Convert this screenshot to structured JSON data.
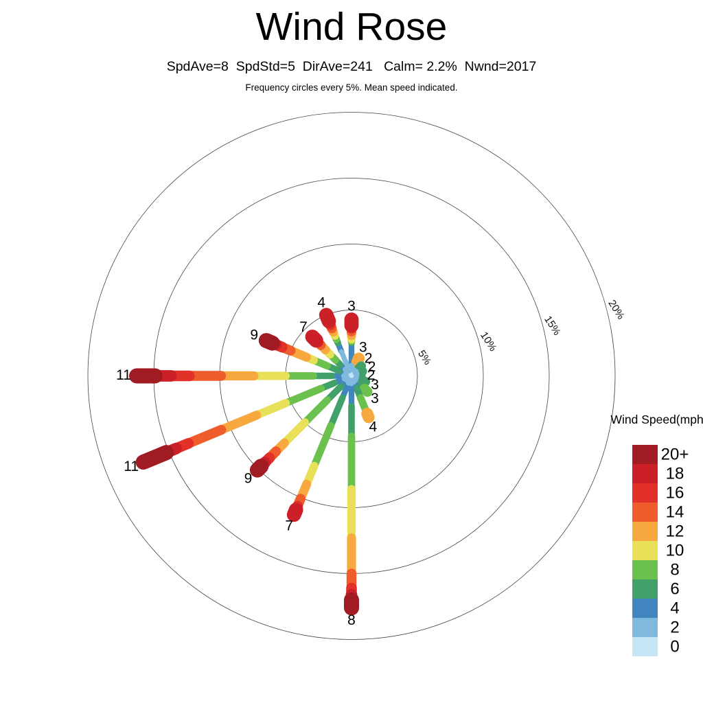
{
  "header": {
    "title": "Wind Rose",
    "subtitle": "SpdAve=8  SpdStd=5  DirAve=241   Calm= 2.2%  Nwnd=2017",
    "caption": "Frequency circles every 5%. Mean speed indicated."
  },
  "chart_data": {
    "type": "windrose",
    "title": "Wind Rose",
    "stats": {
      "SpdAve": 8,
      "SpdStd": 5,
      "DirAve": 241,
      "Calm_pct": 2.2,
      "Nwnd": 2017
    },
    "frequency_ring_step_pct": 5,
    "frequency_rings_pct": [
      5,
      10,
      15,
      20
    ],
    "ring_labels": [
      "5%",
      "10%",
      "15%",
      "20%"
    ],
    "speed_scale": [
      {
        "speed": "0",
        "color": "#c6e6f8"
      },
      {
        "speed": "2",
        "color": "#7fbade"
      },
      {
        "speed": "4",
        "color": "#4286c0"
      },
      {
        "speed": "6",
        "color": "#42a16b"
      },
      {
        "speed": "8",
        "color": "#6cc04d"
      },
      {
        "speed": "10",
        "color": "#e7e058"
      },
      {
        "speed": "12",
        "color": "#f7a93f"
      },
      {
        "speed": "14",
        "color": "#ee5d2b"
      },
      {
        "speed": "16",
        "color": "#e13128"
      },
      {
        "speed": "18",
        "color": "#cb2027"
      },
      {
        "speed": "20+",
        "color": "#a01c22"
      }
    ],
    "legend": {
      "title": "Wind Speed(mph)",
      "labels_top_to_bottom": [
        "20+",
        "18",
        "16",
        "14",
        "12",
        "10",
        "8",
        "6",
        "4",
        "2",
        "0"
      ]
    },
    "directions": [
      {
        "dir": "N",
        "angle": 0,
        "mean_speed": "3",
        "segments": [
          [
            0,
            0.3
          ],
          [
            1,
            0.5
          ],
          [
            2,
            1.7
          ],
          [
            3,
            0.12
          ],
          [
            4,
            0.15
          ],
          [
            5,
            0.3
          ],
          [
            6,
            0.3
          ],
          [
            7,
            0.25
          ],
          [
            8,
            0.2
          ],
          [
            9,
            0.45
          ]
        ]
      },
      {
        "dir": "NNE",
        "angle": 22.5,
        "mean_speed": "3",
        "segments": [
          [
            0,
            0.2
          ],
          [
            1,
            0.3
          ],
          [
            2,
            0.35
          ],
          [
            3,
            0.1
          ],
          [
            4,
            0.1
          ],
          [
            5,
            0.08
          ],
          [
            6,
            0.3
          ]
        ]
      },
      {
        "dir": "NE",
        "angle": 45,
        "mean_speed": "2",
        "segments": [
          [
            0,
            0.2
          ],
          [
            1,
            0.3
          ],
          [
            2,
            0.3
          ],
          [
            3,
            0.25
          ]
        ]
      },
      {
        "dir": "ENE",
        "angle": 67.5,
        "mean_speed": "2",
        "segments": [
          [
            0,
            0.2
          ],
          [
            1,
            0.25
          ],
          [
            2,
            0.25
          ],
          [
            3,
            0.2
          ]
        ]
      },
      {
        "dir": "E",
        "angle": 90,
        "mean_speed": "2",
        "segments": [
          [
            0,
            0.2
          ],
          [
            1,
            0.2
          ],
          [
            2,
            0.2
          ],
          [
            3,
            0.12
          ]
        ]
      },
      {
        "dir": "ESE",
        "angle": 112.5,
        "mean_speed": "3",
        "segments": [
          [
            0,
            0.2
          ],
          [
            1,
            0.2
          ],
          [
            2,
            0.3
          ],
          [
            3,
            0.45
          ]
        ]
      },
      {
        "dir": "SE",
        "angle": 135,
        "mean_speed": "3",
        "segments": [
          [
            0,
            0.2
          ],
          [
            1,
            0.25
          ],
          [
            2,
            0.35
          ],
          [
            3,
            0.6
          ],
          [
            4,
            0.3
          ]
        ]
      },
      {
        "dir": "SSE",
        "angle": 157.5,
        "mean_speed": "4",
        "segments": [
          [
            0,
            0.2
          ],
          [
            1,
            0.3
          ],
          [
            2,
            0.5
          ],
          [
            3,
            0.8
          ],
          [
            4,
            1.25
          ],
          [
            5,
            0.05
          ],
          [
            6,
            0.3
          ]
        ]
      },
      {
        "dir": "S",
        "angle": 180,
        "mean_speed": "8",
        "segments": [
          [
            0,
            0.2
          ],
          [
            1,
            0.4
          ],
          [
            2,
            1.7
          ],
          [
            3,
            2.3
          ],
          [
            4,
            4.0
          ],
          [
            5,
            3.7
          ],
          [
            6,
            2.7
          ],
          [
            7,
            1.1
          ],
          [
            8,
            0.5
          ],
          [
            9,
            0.4
          ],
          [
            10,
            0.6
          ]
        ]
      },
      {
        "dir": "SSW",
        "angle": 202.5,
        "mean_speed": "7",
        "segments": [
          [
            0,
            0.2
          ],
          [
            1,
            0.4
          ],
          [
            2,
            1.2
          ],
          [
            3,
            2.3
          ],
          [
            4,
            3.3
          ],
          [
            5,
            1.5
          ],
          [
            6,
            1.2
          ],
          [
            7,
            0.6
          ],
          [
            8,
            0.3
          ],
          [
            9,
            0.4
          ]
        ]
      },
      {
        "dir": "SW",
        "angle": 225,
        "mean_speed": "9",
        "segments": [
          [
            0,
            0.2
          ],
          [
            1,
            0.3
          ],
          [
            2,
            0.6
          ],
          [
            3,
            1.5
          ],
          [
            4,
            2.4
          ],
          [
            5,
            2.2
          ],
          [
            6,
            0.9
          ],
          [
            7,
            0.7
          ],
          [
            8,
            0.5
          ],
          [
            9,
            0.4
          ],
          [
            10,
            0.4
          ]
        ]
      },
      {
        "dir": "WSW",
        "angle": 247.5,
        "mean_speed": "11",
        "segments": [
          [
            0,
            0.2
          ],
          [
            1,
            0.4
          ],
          [
            2,
            0.8
          ],
          [
            3,
            1.1
          ],
          [
            4,
            2.9
          ],
          [
            5,
            2.4
          ],
          [
            6,
            2.9
          ],
          [
            7,
            2.7
          ],
          [
            8,
            1.0
          ],
          [
            9,
            0.8
          ],
          [
            10,
            1.9
          ]
        ]
      },
      {
        "dir": "W",
        "angle": 270,
        "mean_speed": "11",
        "segments": [
          [
            0,
            0.2
          ],
          [
            1,
            0.4
          ],
          [
            2,
            0.9
          ],
          [
            3,
            1.4
          ],
          [
            4,
            2.1
          ],
          [
            5,
            2.4
          ],
          [
            6,
            2.5
          ],
          [
            7,
            2.4
          ],
          [
            8,
            1.4
          ],
          [
            9,
            1.2
          ],
          [
            10,
            1.4
          ]
        ]
      },
      {
        "dir": "WNW",
        "angle": 292.5,
        "mean_speed": "9",
        "segments": [
          [
            0,
            0.2
          ],
          [
            1,
            0.3
          ],
          [
            2,
            0.5
          ],
          [
            3,
            1.0
          ],
          [
            4,
            1.1
          ],
          [
            5,
            0.6
          ],
          [
            6,
            1.3
          ],
          [
            7,
            0.7
          ],
          [
            8,
            0.5
          ],
          [
            9,
            0.3
          ],
          [
            10,
            0.5
          ]
        ]
      },
      {
        "dir": "NW",
        "angle": 315,
        "mean_speed": "7",
        "segments": [
          [
            0,
            0.3
          ],
          [
            1,
            0.4
          ],
          [
            2,
            0.5
          ],
          [
            3,
            0.5
          ],
          [
            4,
            0.6
          ],
          [
            5,
            0.5
          ],
          [
            6,
            0.5
          ],
          [
            7,
            0.3
          ],
          [
            8,
            0.2
          ],
          [
            9,
            0.4
          ]
        ]
      },
      {
        "dir": "NNW",
        "angle": 337.5,
        "mean_speed": "4",
        "segments": [
          [
            0,
            0.4
          ],
          [
            1,
            1.6
          ],
          [
            2,
            0.7
          ],
          [
            3,
            0.3
          ],
          [
            4,
            0.3
          ],
          [
            5,
            0.3
          ],
          [
            6,
            0.3
          ],
          [
            7,
            0.3
          ],
          [
            8,
            0.3
          ],
          [
            9,
            0.5
          ]
        ]
      }
    ],
    "layout_hints": {
      "grid": "polar frequency circles every 5%",
      "legend_position": "right",
      "ring_label_azimuth_deg": 76
    }
  }
}
